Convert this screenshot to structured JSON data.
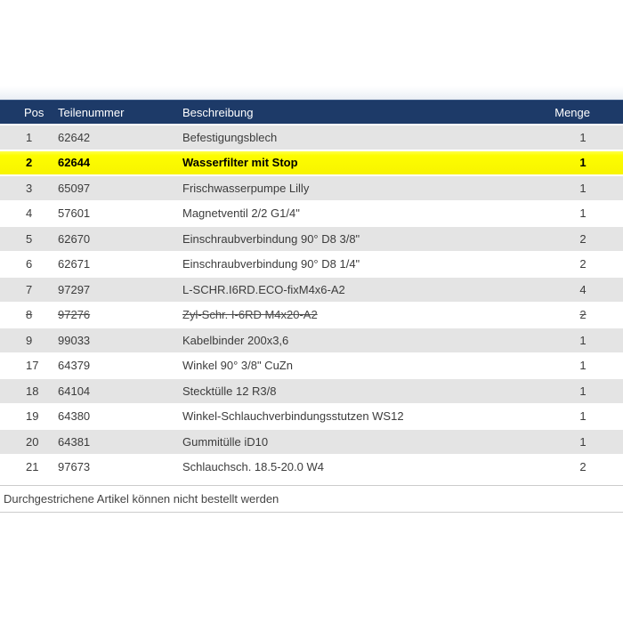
{
  "colors": {
    "header_bg": "#1d3a68",
    "stripe_row": "#e4e4e4",
    "highlight_row": "#fdfd00",
    "header_text": "#ffffff",
    "body_text": "#3c3c3c",
    "notice_border": "#cccccc"
  },
  "table": {
    "columns": [
      "Pos",
      "Teilenummer",
      "Beschreibung",
      "Menge"
    ],
    "rows": [
      {
        "pos": "1",
        "teilenummer": "62642",
        "beschreibung": "Befestigungsblech",
        "menge": "1",
        "style": "stripe"
      },
      {
        "pos": "2",
        "teilenummer": "62644",
        "beschreibung": "Wasserfilter mit Stop",
        "menge": "1",
        "style": "highlight"
      },
      {
        "pos": "3",
        "teilenummer": "65097",
        "beschreibung": "Frischwasserpumpe Lilly",
        "menge": "1",
        "style": "stripe"
      },
      {
        "pos": "4",
        "teilenummer": "57601",
        "beschreibung": "Magnetventil 2/2 G1/4\"",
        "menge": "1",
        "style": "plain"
      },
      {
        "pos": "5",
        "teilenummer": "62670",
        "beschreibung": "Einschraubverbindung 90° D8 3/8\"",
        "menge": "2",
        "style": "stripe"
      },
      {
        "pos": "6",
        "teilenummer": "62671",
        "beschreibung": "Einschraubverbindung 90° D8 1/4\"",
        "menge": "2",
        "style": "plain"
      },
      {
        "pos": "7",
        "teilenummer": "97297",
        "beschreibung": "L-SCHR.I6RD.ECO-fixM4x6-A2",
        "menge": "4",
        "style": "stripe"
      },
      {
        "pos": "8",
        "teilenummer": "97276",
        "beschreibung": "Zyl-Schr. I-6RD M4x20-A2",
        "menge": "2",
        "style": "plain struck"
      },
      {
        "pos": "9",
        "teilenummer": "99033",
        "beschreibung": "Kabelbinder 200x3,6",
        "menge": "1",
        "style": "stripe"
      },
      {
        "pos": "17",
        "teilenummer": "64379",
        "beschreibung": "Winkel 90° 3/8\" CuZn",
        "menge": "1",
        "style": "plain"
      },
      {
        "pos": "18",
        "teilenummer": "64104",
        "beschreibung": "Stecktülle 12 R3/8",
        "menge": "1",
        "style": "stripe"
      },
      {
        "pos": "19",
        "teilenummer": "64380",
        "beschreibung": "Winkel-Schlauchverbindungsstutzen WS12",
        "menge": "1",
        "style": "plain"
      },
      {
        "pos": "20",
        "teilenummer": "64381",
        "beschreibung": "Gummitülle iD10",
        "menge": "1",
        "style": "stripe"
      },
      {
        "pos": "21",
        "teilenummer": "97673",
        "beschreibung": "Schlauchsch. 18.5-20.0 W4",
        "menge": "2",
        "style": "plain"
      }
    ]
  },
  "notice": {
    "text": "Durchgestrichene Artikel können nicht bestellt werden"
  }
}
